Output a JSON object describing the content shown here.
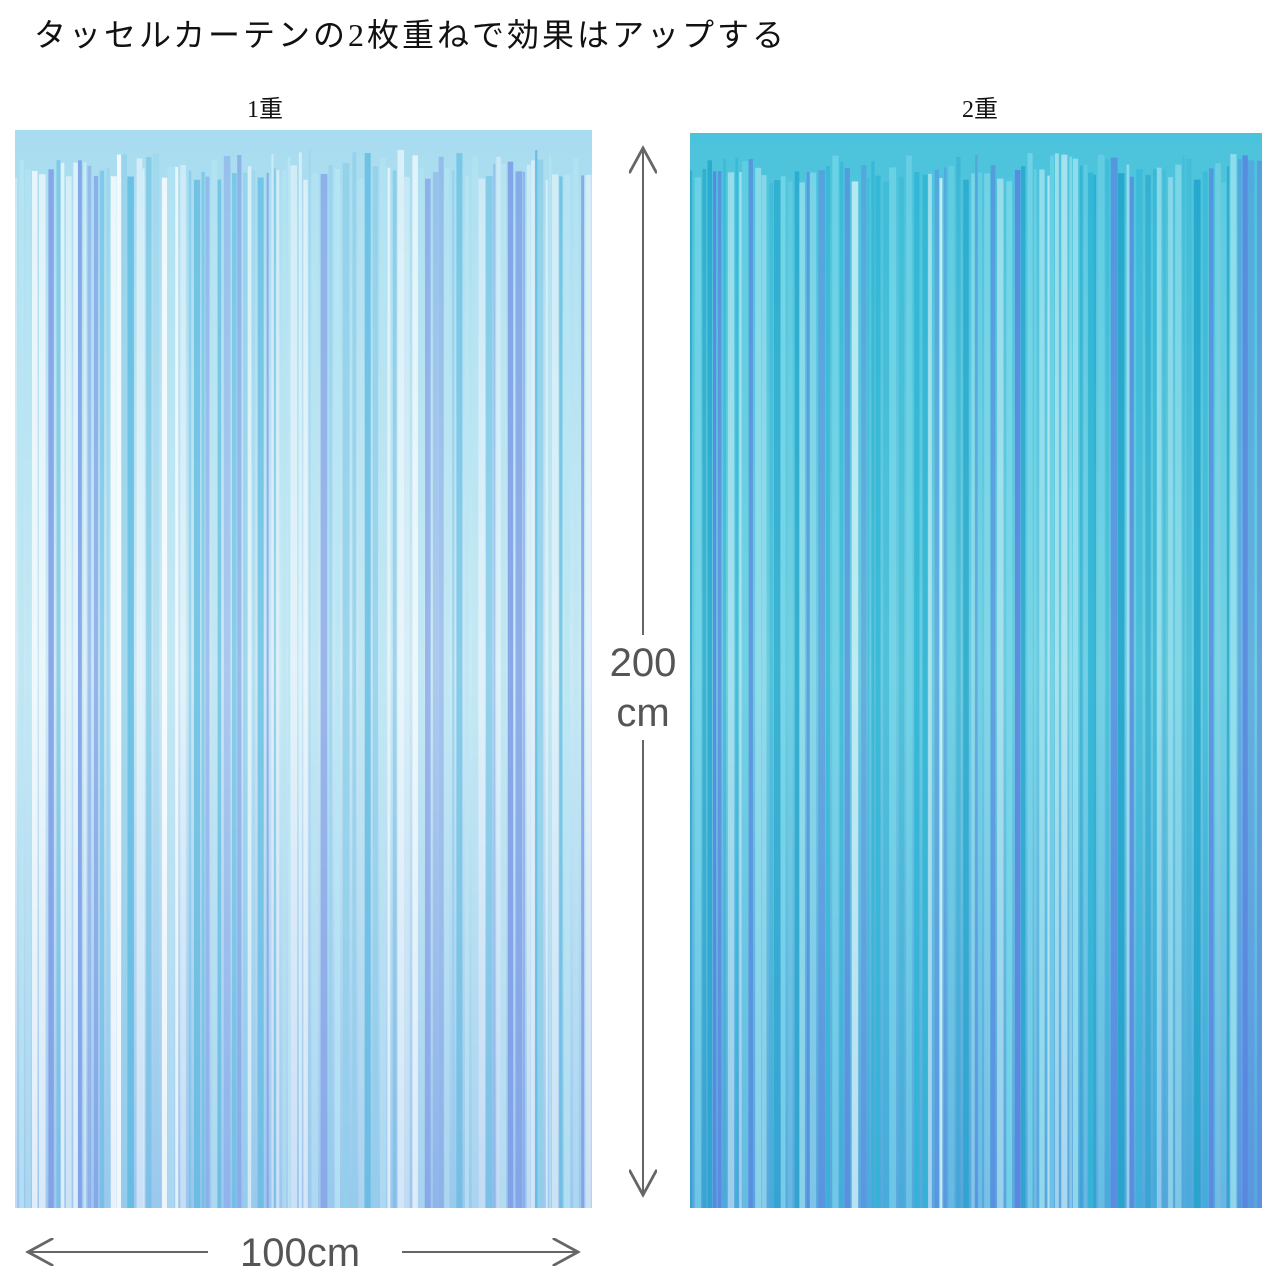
{
  "header": {
    "title": "タッセルカーテンの2枚重ねで効果はアップする"
  },
  "panels": [
    {
      "label": "1重"
    },
    {
      "label": "2重"
    }
  ],
  "dimensions": {
    "height": {
      "lines": [
        "200",
        "cm"
      ]
    },
    "width": "100cm"
  }
}
